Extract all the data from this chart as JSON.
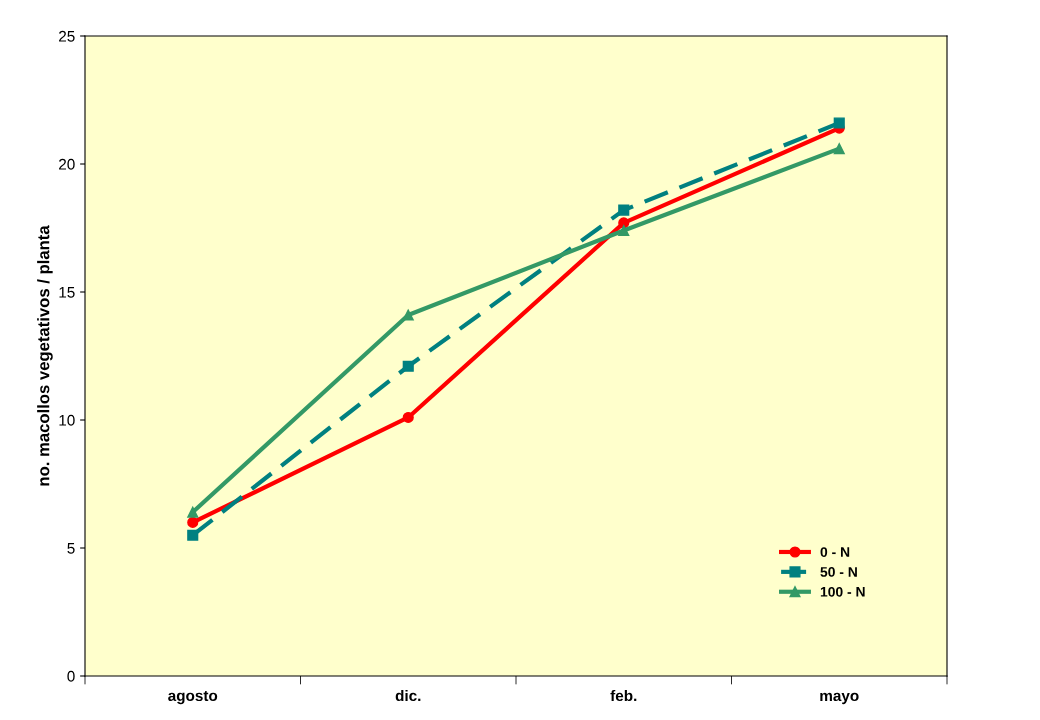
{
  "chart_data": {
    "type": "line",
    "ylabel": "no. macollos vegetativos / planta",
    "categories": [
      "agosto",
      "dic.",
      "feb.",
      "mayo"
    ],
    "series": [
      {
        "name": "0 - N",
        "color": "#ff0000",
        "marker": "circle",
        "line_style": "solid",
        "values": [
          6.0,
          10.1,
          17.7,
          21.4
        ]
      },
      {
        "name": "50 - N",
        "color": "#008080",
        "marker": "square",
        "line_style": "dashed",
        "values": [
          5.5,
          12.1,
          18.2,
          21.6
        ]
      },
      {
        "name": "100 - N",
        "color": "#339966",
        "marker": "triangle",
        "line_style": "solid",
        "values": [
          6.4,
          14.1,
          17.4,
          20.6
        ]
      }
    ],
    "ylim": [
      0,
      25
    ],
    "yticks": [
      0,
      5,
      10,
      15,
      20,
      25
    ],
    "grid": false,
    "legend": "bottom right"
  }
}
